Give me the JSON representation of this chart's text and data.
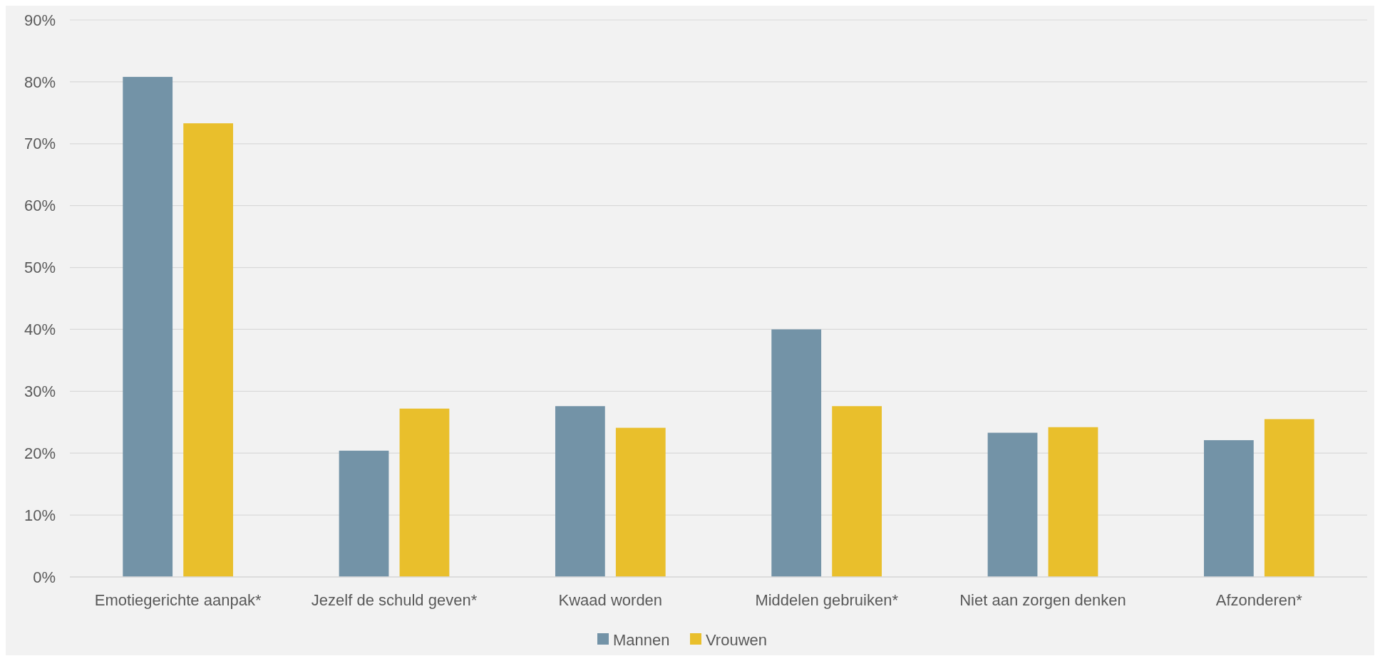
{
  "chart_data": {
    "type": "bar",
    "categories": [
      "Emotiegerichte aanpak*",
      "Jezelf de schuld geven*",
      "Kwaad worden",
      "Middelen gebruiken*",
      "Niet aan zorgen denken",
      "Afzonderen*"
    ],
    "series": [
      {
        "name": "Mannen",
        "color": "#7393a7",
        "values": [
          0.808,
          0.204,
          0.276,
          0.4,
          0.233,
          0.221
        ]
      },
      {
        "name": "Vrouwen",
        "color": "#e9bf2c",
        "values": [
          0.733,
          0.272,
          0.241,
          0.276,
          0.242,
          0.255
        ]
      }
    ],
    "ylim": [
      0,
      0.9
    ],
    "yticks": [
      {
        "value": 0,
        "label": "0%"
      },
      {
        "value": 0.1,
        "label": "10%"
      },
      {
        "value": 0.2,
        "label": "20%"
      },
      {
        "value": 0.3,
        "label": "30%"
      },
      {
        "value": 0.4,
        "label": "40%"
      },
      {
        "value": 0.5,
        "label": "50%"
      },
      {
        "value": 0.6,
        "label": "60%"
      },
      {
        "value": 0.7,
        "label": "70%"
      },
      {
        "value": 0.8,
        "label": "80%"
      },
      {
        "value": 0.9,
        "label": "90%"
      }
    ],
    "grid": "y",
    "legend": "bottom"
  }
}
